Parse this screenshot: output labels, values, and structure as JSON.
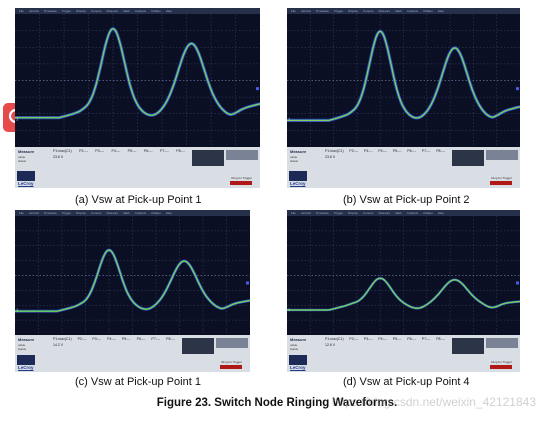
{
  "scope_menu": [
    "File",
    "Vertical",
    "Timebase",
    "Trigger",
    "Display",
    "Cursors",
    "Measure",
    "Math",
    "Analysis",
    "Utilities",
    "Help"
  ],
  "measure_title": "Measure",
  "row_labels": [
    "value",
    "status"
  ],
  "pcols": [
    "P1:max(C1)",
    "P2:---",
    "P3:---",
    "P4:---",
    "P5:---",
    "P6:---",
    "P7:---",
    "P8:---"
  ],
  "lecroy": "LeCroy",
  "trigger_label": "Ring for Trigger",
  "panels": [
    {
      "caption": "(a)  Vsw at Pick-up Point 1",
      "p1": "23.6 V"
    },
    {
      "caption": "(b)  Vsw at Pick-up Point 2",
      "p1": "23.6 V"
    },
    {
      "caption": "(c)  Vsw at Pick-up Point 1",
      "p1": "14.2 V"
    },
    {
      "caption": "(d)  Vsw at Pick-up Point 4",
      "p1": "12.6 V"
    }
  ],
  "figure_caption": "Figure 23.   Switch Node Ringing Waveforms.",
  "watermark": "https://blog.csdn.net/weixin_42121843",
  "colors": {
    "trace_outer": "#3a3ad8",
    "trace_mid": "#37b36a",
    "trace_inner": "#9fd45a",
    "accent": "#e64a4a"
  }
}
